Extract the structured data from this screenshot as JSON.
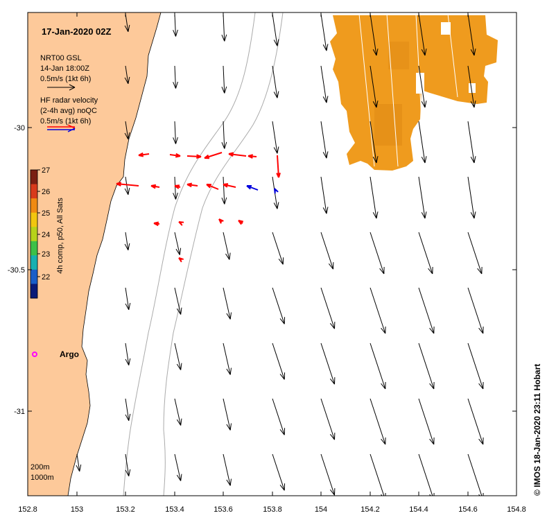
{
  "title": "17-Jan-2020 02Z",
  "legend": {
    "gsl_line1": "NRT00 GSL",
    "gsl_line2": "14-Jan 18:00Z",
    "gsl_scale": "0.5m/s (1kt 6h)",
    "hf_line1": "HF radar velocity",
    "hf_line2": "(2-4h avg) noQC",
    "hf_scale": "0.5m/s (1kt 6h)"
  },
  "colorbar": {
    "label": "4h comp, p50, All Sats",
    "ticks": [
      "27",
      "26",
      "25",
      "24",
      "23",
      "22"
    ],
    "colors": [
      "#7a1f12",
      "#d83a1b",
      "#f08a12",
      "#f2c60e",
      "#b7d21a",
      "#3cc048",
      "#17b0b0",
      "#1a5ec8",
      "#0a1b78"
    ]
  },
  "axes": {
    "x_ticks": [
      "152.8",
      "153",
      "153.2",
      "153.4",
      "153.6",
      "153.8",
      "154",
      "154.2",
      "154.4",
      "154.6",
      "154.8"
    ],
    "y_ticks": [
      "-30",
      "-30.5",
      "-31"
    ]
  },
  "isobath_labels": {
    "first": "200m",
    "second": "1000m"
  },
  "argo_label": "Argo",
  "credit": "© IMOS 18-Jan-2020 23:11 Hobart",
  "colors": {
    "land": "#fdc99a",
    "sst_patch": "#ef9b1e",
    "hf_radar": "#ff0000",
    "hf_radar_alt": "#0000dd",
    "argo": "#ff00ff",
    "isobath": "#aaaaaa"
  }
}
